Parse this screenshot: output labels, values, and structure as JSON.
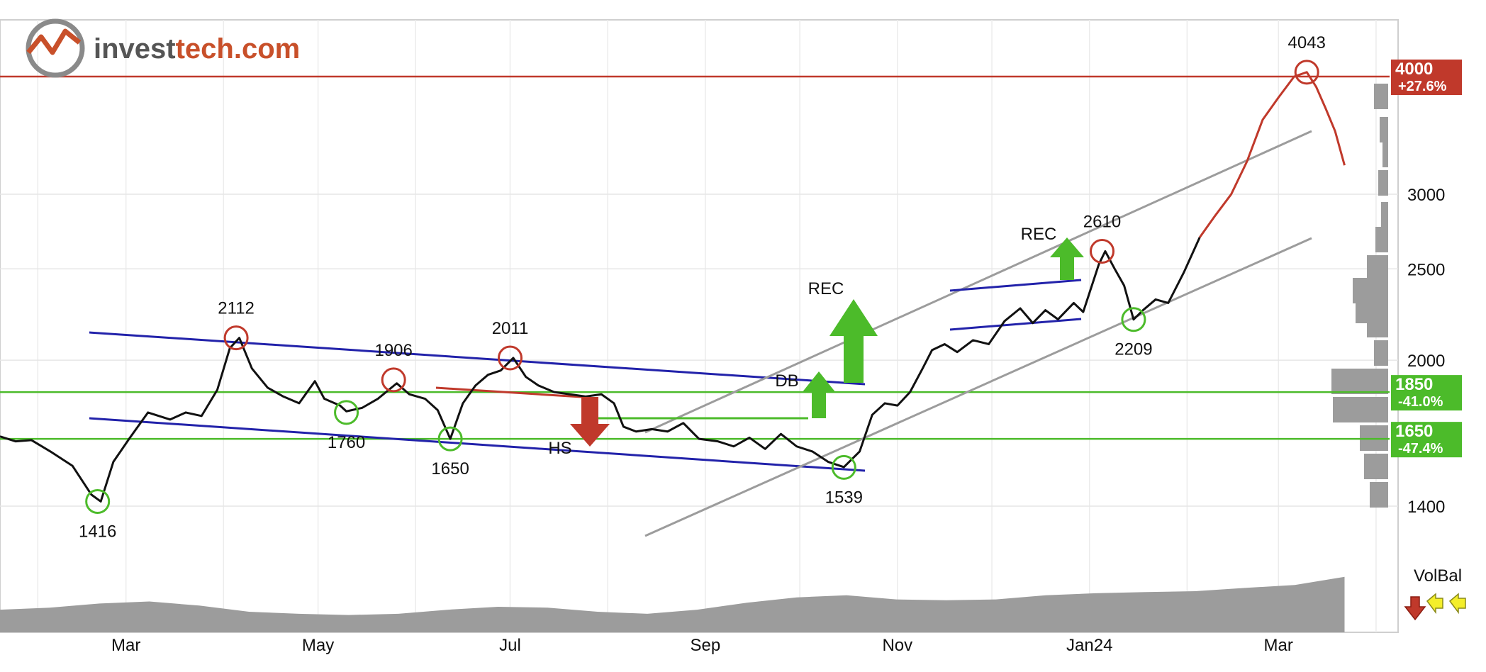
{
  "brand": {
    "logo_text_part1": "invest",
    "logo_text_part2": "tech.com",
    "colors": {
      "primary": "#555555",
      "accent": "#c8502a"
    }
  },
  "chart_data": {
    "type": "line",
    "y_scale": "log",
    "ylim": [
      1300,
      4500
    ],
    "y_ticks": [
      1400,
      2000,
      2500,
      3000
    ],
    "x_ticks": [
      "Mar",
      "May",
      "Jul",
      "Sep",
      "Nov",
      "Jan24",
      "Mar"
    ],
    "price_labels": [
      {
        "id": "p1416",
        "text": "1416",
        "value": 1416,
        "date": "2023-02-20",
        "kind": "low"
      },
      {
        "id": "p2112",
        "text": "2112",
        "value": 2112,
        "date": "2023-04-05",
        "kind": "high"
      },
      {
        "id": "p1760",
        "text": "1760",
        "value": 1760,
        "date": "2023-05-10",
        "kind": "low"
      },
      {
        "id": "p1906",
        "text": "1906",
        "value": 1906,
        "date": "2023-05-25",
        "kind": "high"
      },
      {
        "id": "p1650",
        "text": "1650",
        "value": 1650,
        "date": "2023-06-12",
        "kind": "low"
      },
      {
        "id": "p2011",
        "text": "2011",
        "value": 2011,
        "date": "2023-07-01",
        "kind": "high"
      },
      {
        "id": "p1539",
        "text": "1539",
        "value": 1539,
        "date": "2023-10-15",
        "kind": "low"
      },
      {
        "id": "p2610",
        "text": "2610",
        "value": 2610,
        "date": "2024-01-05",
        "kind": "high"
      },
      {
        "id": "p2209",
        "text": "2209",
        "value": 2209,
        "date": "2024-01-15",
        "kind": "low"
      },
      {
        "id": "p4043",
        "text": "4043",
        "value": 4043,
        "date": "2024-03-10",
        "kind": "high"
      }
    ],
    "pattern_labels": [
      "REC",
      "DB",
      "HS",
      "REC"
    ],
    "levels": [
      {
        "value": 4000,
        "label": "4000",
        "pct": "+27.6%",
        "color": "#c0392b",
        "type": "resistance"
      },
      {
        "value": 1850,
        "label": "1850",
        "pct": "-41.0%",
        "color": "#4cbb2a",
        "type": "support"
      },
      {
        "value": 1650,
        "label": "1650",
        "pct": "-47.4%",
        "color": "#4cbb2a",
        "type": "support"
      }
    ],
    "volbal_label": "VolBal",
    "volbal_signals": [
      "down",
      "neutral",
      "neutral"
    ],
    "price_series": [
      [
        "2023-01-20",
        1660
      ],
      [
        "2023-01-25",
        1640
      ],
      [
        "2023-01-30",
        1645
      ],
      [
        "2023-02-05",
        1600
      ],
      [
        "2023-02-12",
        1545
      ],
      [
        "2023-02-18",
        1440
      ],
      [
        "2023-02-21",
        1416
      ],
      [
        "2023-02-25",
        1560
      ],
      [
        "2023-03-02",
        1650
      ],
      [
        "2023-03-08",
        1760
      ],
      [
        "2023-03-15",
        1730
      ],
      [
        "2023-03-20",
        1760
      ],
      [
        "2023-03-25",
        1745
      ],
      [
        "2023-03-30",
        1860
      ],
      [
        "2023-04-03",
        2060
      ],
      [
        "2023-04-06",
        2112
      ],
      [
        "2023-04-10",
        1960
      ],
      [
        "2023-04-15",
        1870
      ],
      [
        "2023-04-20",
        1830
      ],
      [
        "2023-04-25",
        1800
      ],
      [
        "2023-04-30",
        1900
      ],
      [
        "2023-05-03",
        1820
      ],
      [
        "2023-05-08",
        1790
      ],
      [
        "2023-05-10",
        1765
      ],
      [
        "2023-05-15",
        1780
      ],
      [
        "2023-05-20",
        1820
      ],
      [
        "2023-05-26",
        1890
      ],
      [
        "2023-05-30",
        1840
      ],
      [
        "2023-06-04",
        1820
      ],
      [
        "2023-06-08",
        1770
      ],
      [
        "2023-06-12",
        1650
      ],
      [
        "2023-06-16",
        1800
      ],
      [
        "2023-06-20",
        1880
      ],
      [
        "2023-06-24",
        1930
      ],
      [
        "2023-06-28",
        1950
      ],
      [
        "2023-07-02",
        2011
      ],
      [
        "2023-07-06",
        1920
      ],
      [
        "2023-07-10",
        1880
      ],
      [
        "2023-07-15",
        1850
      ],
      [
        "2023-07-20",
        1840
      ],
      [
        "2023-07-25",
        1830
      ],
      [
        "2023-07-30",
        1840
      ],
      [
        "2023-08-03",
        1800
      ],
      [
        "2023-08-06",
        1700
      ],
      [
        "2023-08-10",
        1680
      ],
      [
        "2023-08-15",
        1690
      ],
      [
        "2023-08-20",
        1680
      ],
      [
        "2023-08-25",
        1715
      ],
      [
        "2023-08-30",
        1650
      ],
      [
        "2023-09-05",
        1640
      ],
      [
        "2023-09-10",
        1620
      ],
      [
        "2023-09-15",
        1655
      ],
      [
        "2023-09-20",
        1610
      ],
      [
        "2023-09-25",
        1670
      ],
      [
        "2023-09-30",
        1620
      ],
      [
        "2023-10-05",
        1600
      ],
      [
        "2023-10-10",
        1560
      ],
      [
        "2023-10-15",
        1540
      ],
      [
        "2023-10-20",
        1600
      ],
      [
        "2023-10-24",
        1750
      ],
      [
        "2023-10-28",
        1800
      ],
      [
        "2023-11-01",
        1790
      ],
      [
        "2023-11-05",
        1850
      ],
      [
        "2023-11-09",
        1960
      ],
      [
        "2023-11-12",
        2050
      ],
      [
        "2023-11-16",
        2080
      ],
      [
        "2023-11-20",
        2040
      ],
      [
        "2023-11-25",
        2100
      ],
      [
        "2023-11-30",
        2080
      ],
      [
        "2023-12-05",
        2200
      ],
      [
        "2023-12-10",
        2270
      ],
      [
        "2023-12-14",
        2190
      ],
      [
        "2023-12-18",
        2260
      ],
      [
        "2023-12-22",
        2210
      ],
      [
        "2023-12-27",
        2300
      ],
      [
        "2023-12-30",
        2250
      ],
      [
        "2024-01-04",
        2530
      ],
      [
        "2024-01-06",
        2610
      ],
      [
        "2024-01-09",
        2500
      ],
      [
        "2024-01-12",
        2400
      ],
      [
        "2024-01-15",
        2209
      ],
      [
        "2024-01-18",
        2260
      ],
      [
        "2024-01-22",
        2320
      ],
      [
        "2024-01-26",
        2300
      ],
      [
        "2024-01-31",
        2480
      ],
      [
        "2024-02-05",
        2700
      ],
      [
        "2024-02-10",
        2850
      ],
      [
        "2024-02-15",
        3000
      ],
      [
        "2024-02-20",
        3250
      ],
      [
        "2024-02-25",
        3600
      ],
      [
        "2024-03-01",
        3800
      ],
      [
        "2024-03-06",
        4000
      ],
      [
        "2024-03-10",
        4043
      ],
      [
        "2024-03-13",
        3900
      ],
      [
        "2024-03-16",
        3700
      ],
      [
        "2024-03-19",
        3500
      ],
      [
        "2024-03-22",
        3220
      ]
    ],
    "volume_profile": [
      0.55,
      0.6,
      0.7,
      0.75,
      0.65,
      0.5,
      0.45,
      0.42,
      0.45,
      0.55,
      0.62,
      0.6,
      0.5,
      0.45,
      0.55,
      0.72,
      0.85,
      0.9,
      0.8,
      0.78,
      0.8,
      0.9,
      0.95,
      0.98,
      1.0,
      1.08,
      1.15,
      1.35
    ]
  }
}
